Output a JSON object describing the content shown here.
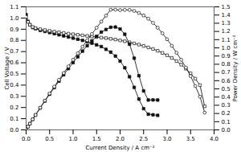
{
  "chart_data": {
    "type": "line",
    "xlabel": "Current Density / A cm⁻²",
    "ylabel": "Cell Voltage / V",
    "y2label": "Power Density / W cm⁻²",
    "xlim": [
      0,
      4.0
    ],
    "ylim": [
      0,
      1.1
    ],
    "y2lim": [
      0.0,
      1.5
    ],
    "xticks": [
      {
        "value": 0,
        "label": "0.0"
      },
      0.5,
      {
        "value": 1,
        "label": "1.0"
      },
      1.5,
      {
        "value": 2,
        "label": "2.0"
      },
      2.5,
      {
        "value": 3,
        "label": "3.0"
      },
      3.5,
      {
        "value": 4,
        "label": "4.0"
      }
    ],
    "yticks": [
      {
        "value": 0,
        "label": "0.0"
      },
      0.1,
      0.2,
      0.3,
      0.4,
      0.5,
      0.6,
      0.7,
      0.8,
      0.9,
      {
        "value": 1,
        "label": "1.0"
      },
      1.1
    ],
    "y2ticks": [
      {
        "value": 0,
        "label": "0.0"
      },
      0.1,
      0.2,
      0.3,
      0.4,
      0.5,
      0.6,
      0.7,
      0.8,
      0.9,
      {
        "value": 1,
        "label": "1.0"
      },
      1.1,
      1.2,
      1.3,
      1.4,
      1.5
    ],
    "grid": false,
    "series": [
      {
        "color": "#111111",
        "marker": "square",
        "x": [
          0.0,
          0.04,
          0.08,
          0.14,
          0.2,
          0.3,
          0.4,
          0.5,
          0.6,
          0.7,
          0.8,
          0.9,
          1.0,
          1.1,
          1.2,
          1.3,
          1.4,
          1.5,
          1.6,
          1.7,
          1.8,
          1.9,
          2.0,
          2.1,
          2.2,
          2.3,
          2.4,
          2.5,
          2.6,
          2.7,
          2.8
        ],
        "values": [
          1.03,
          0.97,
          0.94,
          0.915,
          0.905,
          0.89,
          0.88,
          0.87,
          0.86,
          0.85,
          0.84,
          0.83,
          0.82,
          0.81,
          0.8,
          0.79,
          0.775,
          0.76,
          0.745,
          0.72,
          0.695,
          0.66,
          0.615,
          0.555,
          0.475,
          0.38,
          0.275,
          0.19,
          0.14,
          0.135,
          0.13
        ]
      },
      {
        "color": "#111111",
        "marker": "square-open",
        "x": [
          0.0,
          0.04,
          0.08,
          0.14,
          0.2,
          0.3,
          0.4,
          0.5,
          0.6,
          0.7,
          0.8,
          0.9,
          1.0,
          1.1,
          1.2,
          1.3,
          1.4,
          1.5,
          1.6,
          1.7,
          1.8,
          1.9,
          2.0,
          2.1,
          2.2,
          2.3,
          2.4,
          2.5,
          2.6,
          2.7,
          2.8,
          2.9,
          3.0,
          3.1,
          3.2,
          3.3,
          3.4,
          3.5,
          3.6,
          3.7,
          3.8
        ],
        "values": [
          1.01,
          0.965,
          0.94,
          0.92,
          0.91,
          0.9,
          0.892,
          0.885,
          0.878,
          0.872,
          0.866,
          0.86,
          0.855,
          0.85,
          0.845,
          0.84,
          0.835,
          0.83,
          0.825,
          0.82,
          0.814,
          0.808,
          0.8,
          0.792,
          0.783,
          0.773,
          0.762,
          0.75,
          0.737,
          0.723,
          0.707,
          0.688,
          0.667,
          0.643,
          0.615,
          0.583,
          0.547,
          0.506,
          0.458,
          0.4,
          0.21
        ]
      },
      {
        "color": "#111111",
        "marker": "square",
        "axis": "y2",
        "x": [
          0.0,
          0.04,
          0.08,
          0.14,
          0.2,
          0.3,
          0.4,
          0.5,
          0.6,
          0.7,
          0.8,
          0.9,
          1.0,
          1.1,
          1.2,
          1.3,
          1.4,
          1.5,
          1.6,
          1.7,
          1.8,
          1.9,
          2.0,
          2.1,
          2.2,
          2.3,
          2.4,
          2.5,
          2.6,
          2.7,
          2.8
        ],
        "values": [
          0.0,
          0.039,
          0.075,
          0.128,
          0.181,
          0.267,
          0.352,
          0.435,
          0.516,
          0.595,
          0.672,
          0.747,
          0.82,
          0.891,
          0.96,
          1.027,
          1.085,
          1.14,
          1.192,
          1.224,
          1.251,
          1.254,
          1.23,
          1.166,
          1.045,
          0.874,
          0.66,
          0.475,
          0.364,
          0.365,
          0.364
        ]
      },
      {
        "color": "#111111",
        "marker": "circle-open",
        "axis": "y2",
        "x": [
          0.0,
          0.04,
          0.08,
          0.14,
          0.2,
          0.3,
          0.4,
          0.5,
          0.6,
          0.7,
          0.8,
          0.9,
          1.0,
          1.1,
          1.2,
          1.3,
          1.4,
          1.5,
          1.6,
          1.7,
          1.8,
          1.9,
          2.0,
          2.1,
          2.2,
          2.3,
          2.4,
          2.5,
          2.6,
          2.7,
          2.8,
          2.9,
          3.0,
          3.1,
          3.2,
          3.3,
          3.4,
          3.5,
          3.6,
          3.7,
          3.8
        ],
        "values": [
          0.0,
          0.039,
          0.075,
          0.129,
          0.182,
          0.27,
          0.357,
          0.443,
          0.527,
          0.61,
          0.693,
          0.774,
          0.855,
          0.935,
          1.014,
          1.092,
          1.169,
          1.245,
          1.32,
          1.393,
          1.465,
          1.465,
          1.46,
          1.463,
          1.462,
          1.45,
          1.425,
          1.395,
          1.355,
          1.304,
          1.245,
          1.178,
          1.105,
          1.025,
          0.94,
          0.855,
          0.76,
          0.655,
          0.535,
          0.405,
          0.21
        ]
      }
    ]
  }
}
